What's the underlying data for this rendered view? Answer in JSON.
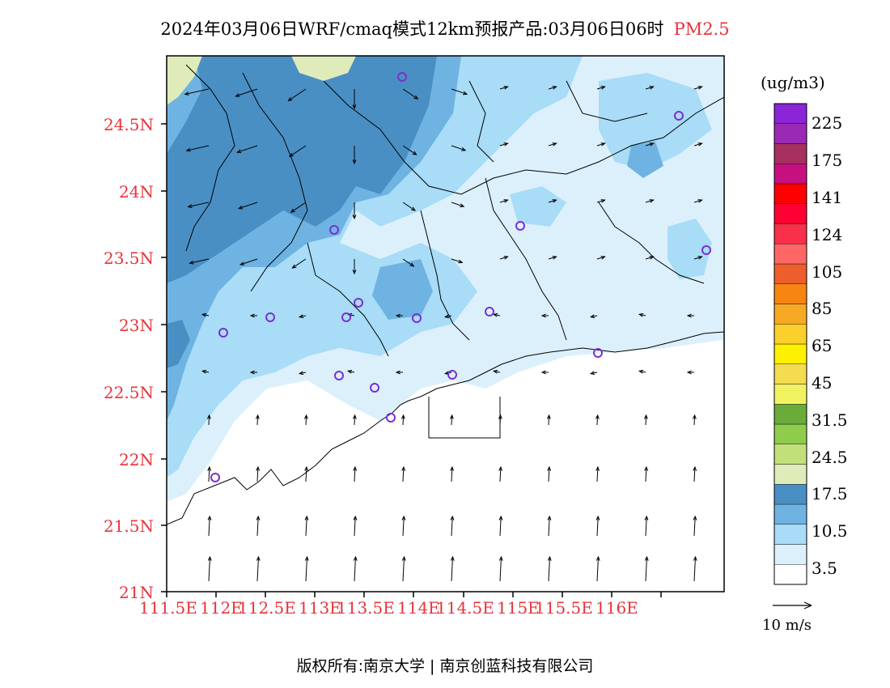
{
  "title": {
    "main": "2024年03月06日WRF/cmaq模式12km预报产品:03月06日06时",
    "product": "PM2.5"
  },
  "unit": "(ug/m3)",
  "colorbar": {
    "labels": [
      "3.5",
      "10.5",
      "17.5",
      "24.5",
      "31.5",
      "45",
      "65",
      "85",
      "105",
      "124",
      "141",
      "175",
      "225"
    ],
    "colors": [
      "#ffffff",
      "#dcf0fc",
      "#a8dcf7",
      "#6fb3e2",
      "#4a8fc4",
      "#e0ebba",
      "#c2e07a",
      "#8fcc4c",
      "#6aab3a",
      "#f2f261",
      "#f4dc50",
      "#fff000",
      "#fbcf2c",
      "#f8a923",
      "#f78511",
      "#ec5e2c",
      "#ff6666",
      "#f8304a",
      "#ff0033",
      "#ff0000",
      "#c71080",
      "#a73060",
      "#9a2ab6",
      "#8a25d8"
    ]
  },
  "axes": {
    "lat_ticks": [
      "21N",
      "21.5N",
      "22N",
      "22.5N",
      "23N",
      "23.5N",
      "24N",
      "24.5N"
    ],
    "lon_ticks": [
      "111.5E",
      "112E",
      "112.5E",
      "113E",
      "113.5E",
      "114E",
      "114.5E",
      "115E",
      "115.5E",
      "116E"
    ]
  },
  "wind_reference": "10 m/s",
  "stations_count_note": "",
  "footer": {
    "left": "版权所有:南京大学",
    "right": "南京创蓝科技有限公司"
  }
}
